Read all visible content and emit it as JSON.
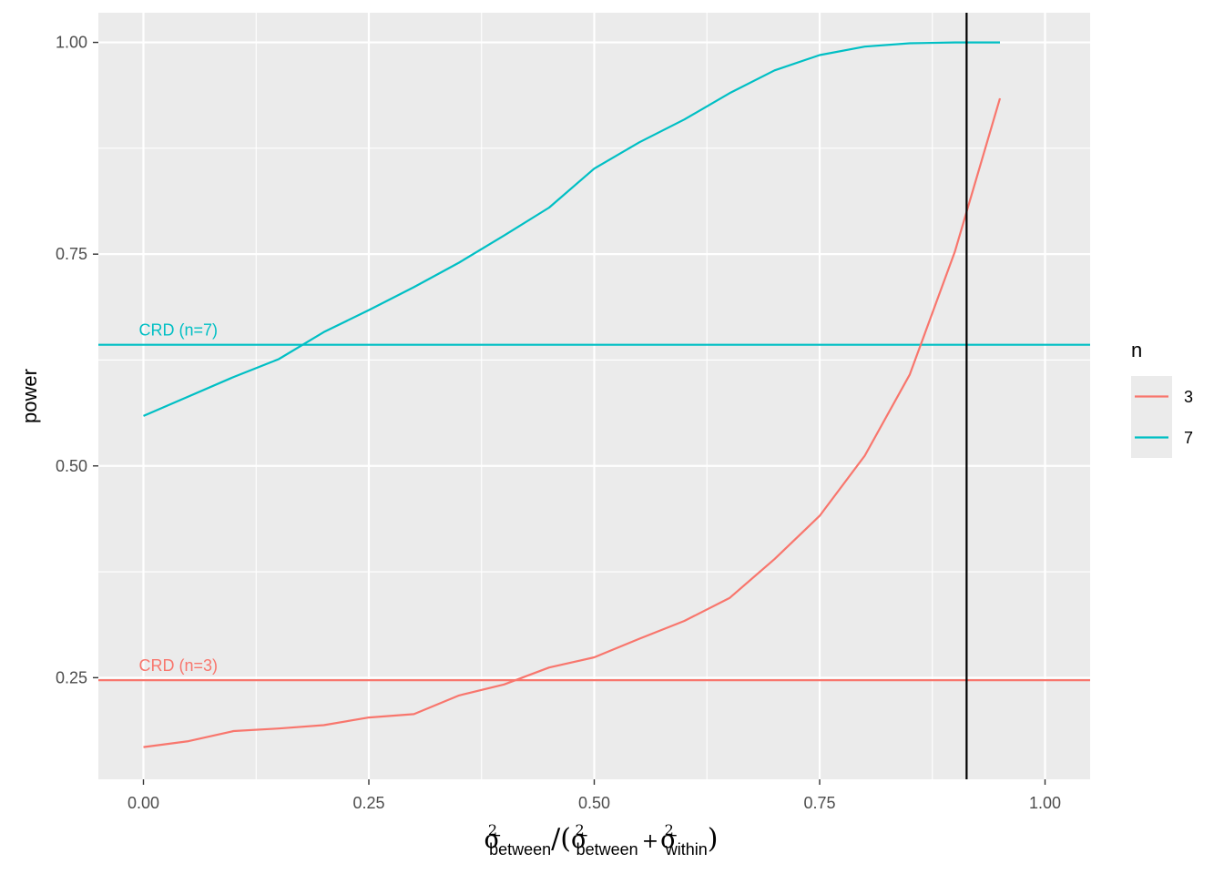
{
  "chart_data": {
    "type": "line",
    "title": "",
    "xlabel": {
      "sigma": "σ",
      "sup": "2",
      "between": "between",
      "within": "within",
      "slash": "/",
      "open": "(",
      "close": ")",
      "plus": "+"
    },
    "ylabel": "power",
    "xlim": [
      -0.05,
      1.05
    ],
    "ylim": [
      0.13,
      1.035
    ],
    "xticks": [
      0.0,
      0.25,
      0.5,
      0.75,
      1.0
    ],
    "xtick_labels": [
      "0.00",
      "0.25",
      "0.50",
      "0.75",
      "1.00"
    ],
    "yticks": [
      0.25,
      0.5,
      0.75,
      1.0
    ],
    "ytick_labels": [
      "0.25",
      "0.50",
      "0.75",
      "1.00"
    ],
    "grid": true,
    "legend": {
      "title": "n",
      "position": "right"
    },
    "x": [
      0.0,
      0.05,
      0.1,
      0.15,
      0.2,
      0.25,
      0.3,
      0.35,
      0.4,
      0.45,
      0.5,
      0.55,
      0.6,
      0.65,
      0.7,
      0.75,
      0.8,
      0.85,
      0.9,
      0.95
    ],
    "series": [
      {
        "name": "3",
        "color": "#F8766D",
        "values": [
          0.168,
          0.175,
          0.187,
          0.19,
          0.194,
          0.203,
          0.207,
          0.229,
          0.242,
          0.262,
          0.274,
          0.296,
          0.317,
          0.344,
          0.39,
          0.441,
          0.512,
          0.608,
          0.753,
          0.934
        ]
      },
      {
        "name": "7",
        "color": "#00BFC4",
        "values": [
          0.559,
          0.582,
          0.605,
          0.626,
          0.658,
          0.684,
          0.711,
          0.74,
          0.772,
          0.805,
          0.851,
          0.882,
          0.909,
          0.94,
          0.967,
          0.985,
          0.995,
          0.999,
          1.0,
          1.0
        ]
      }
    ],
    "hlines": [
      {
        "y": 0.247,
        "label": "CRD (n=3)",
        "color": "#F8766D"
      },
      {
        "y": 0.643,
        "label": "CRD (n=7)",
        "color": "#00BFC4"
      }
    ],
    "vline": {
      "x": 0.913,
      "color": "#000000"
    }
  }
}
